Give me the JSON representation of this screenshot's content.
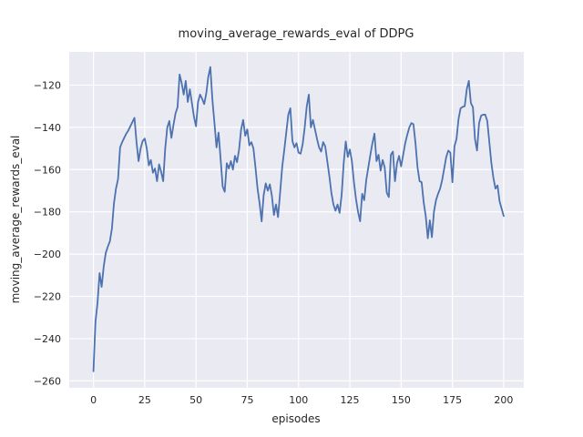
{
  "figure": {
    "background": "#ffffff",
    "text_color": "#262626"
  },
  "chart_data": {
    "type": "line",
    "title": "moving_average_rewards_eval of DDPG",
    "xlabel": "episodes",
    "ylabel": "moving_average_rewards_eval",
    "legend": null,
    "grid": true,
    "style": "seaborn-darkgrid",
    "plot_background": "#eaeaf2",
    "grid_color": "#ffffff",
    "line_color": "#4c72b0",
    "xlim": [
      -11.8,
      209.8
    ],
    "ylim": [
      -263.3,
      -104.3
    ],
    "x_ticks": [
      0,
      25,
      50,
      75,
      100,
      125,
      150,
      175,
      200
    ],
    "x_tick_labels": [
      "0",
      "25",
      "50",
      "75",
      "100",
      "125",
      "150",
      "175",
      "200"
    ],
    "y_ticks": [
      -120,
      -140,
      -160,
      -180,
      -200,
      -220,
      -240,
      -260
    ],
    "y_tick_labels": [
      "−120",
      "−140",
      "−160",
      "−180",
      "−200",
      "−220",
      "−240",
      "−260"
    ],
    "x_note": "episodes 0..200, one value per episode (index = episode)",
    "series": [
      {
        "name": "moving_average_rewards_eval",
        "values": [
          -255.5,
          -232,
          -223,
          -209,
          -215.5,
          -206,
          -199.5,
          -196.5,
          -194,
          -188,
          -176,
          -169,
          -164.5,
          -149.5,
          -147,
          -145,
          -143,
          -141.5,
          -139.5,
          -137.5,
          -135.5,
          -147,
          -156,
          -150,
          -146.5,
          -145.3,
          -150,
          -158,
          -155.5,
          -161.5,
          -159.5,
          -165.5,
          -157.5,
          -161,
          -165.5,
          -150,
          -140,
          -137,
          -145,
          -139,
          -133.5,
          -130.5,
          -115,
          -119,
          -124.5,
          -118,
          -128,
          -122,
          -128.5,
          -135,
          -139.5,
          -128,
          -124.5,
          -126.5,
          -129,
          -124,
          -116,
          -111.5,
          -127,
          -138,
          -149.5,
          -142.5,
          -155,
          -168,
          -170.5,
          -157,
          -159.5,
          -156,
          -160,
          -153.5,
          -156.5,
          -150.5,
          -141,
          -136.5,
          -144,
          -141,
          -148.5,
          -147,
          -150,
          -159,
          -169,
          -176,
          -184.5,
          -172,
          -166.5,
          -170,
          -167,
          -172.5,
          -181.5,
          -176.5,
          -182.5,
          -171,
          -159,
          -151,
          -142.5,
          -134,
          -131,
          -146.5,
          -149.5,
          -147.5,
          -152,
          -152.5,
          -148,
          -140,
          -130,
          -124.5,
          -140,
          -136.5,
          -141,
          -145.5,
          -149.5,
          -151.5,
          -147,
          -149,
          -156,
          -163,
          -171,
          -176.5,
          -179.5,
          -176.5,
          -180.5,
          -172,
          -157,
          -146.7,
          -154,
          -150.5,
          -156,
          -166,
          -174,
          -180,
          -184.5,
          -171.5,
          -174.5,
          -165,
          -159,
          -153,
          -147.5,
          -143,
          -156,
          -153,
          -160.5,
          -155.5,
          -159,
          -171,
          -173,
          -153,
          -151.5,
          -165.5,
          -157,
          -153.5,
          -158.5,
          -153,
          -147.5,
          -143.5,
          -140,
          -138,
          -138.5,
          -147.5,
          -159,
          -165.5,
          -166,
          -175.5,
          -182,
          -192.5,
          -184,
          -192,
          -180,
          -174.5,
          -171.5,
          -169,
          -165,
          -159.5,
          -154,
          -151,
          -152,
          -166,
          -149,
          -145.5,
          -136,
          -131,
          -130.3,
          -130,
          -122,
          -118,
          -128.5,
          -130.5,
          -145.5,
          -151,
          -138,
          -134.5,
          -134,
          -134,
          -137,
          -147,
          -157,
          -164,
          -169,
          -167.5,
          -175,
          -178.5,
          -182
        ]
      }
    ]
  }
}
